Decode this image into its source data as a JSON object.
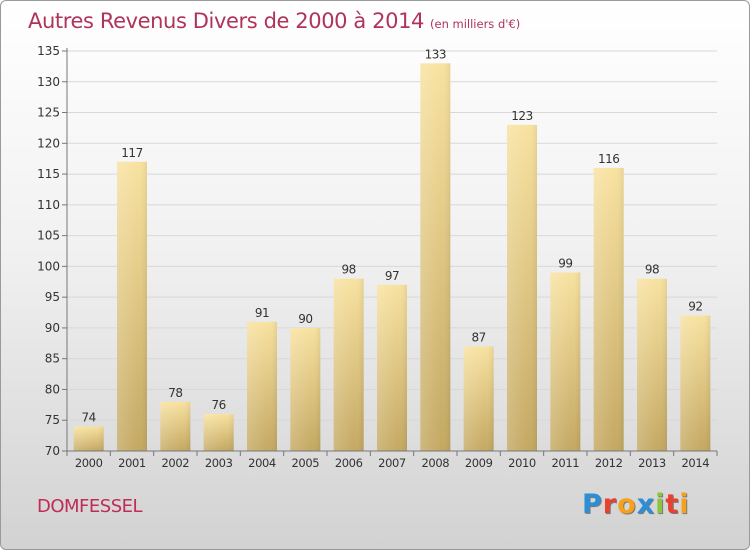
{
  "title": {
    "main": "Autres Revenus Divers de 2000 à 2014",
    "unit": "(en milliers d'€)"
  },
  "town": "DOMFESSEL",
  "logo": {
    "text": "Proxiti",
    "letters": [
      {
        "ch": "P",
        "color": "#2a8fd6"
      },
      {
        "ch": "r",
        "color": "#e8412f"
      },
      {
        "ch": "o",
        "color": "#f4a21d"
      },
      {
        "ch": "x",
        "color": "#2a8fd6"
      },
      {
        "ch": "i",
        "color": "#8cc43f"
      },
      {
        "ch": "t",
        "color": "#e8412f"
      },
      {
        "ch": "i",
        "color": "#f4a21d"
      }
    ]
  },
  "colors": {
    "title": "#b0335a",
    "bar_top": "#f8e2a0",
    "bar_bottom": "#c4a862",
    "grid": "#d8d8d8"
  },
  "chart_data": {
    "type": "bar",
    "title": "Autres Revenus Divers de 2000 à 2014",
    "subtitle": "(en milliers d'€)",
    "categories": [
      "2000",
      "2001",
      "2002",
      "2003",
      "2004",
      "2005",
      "2006",
      "2007",
      "2008",
      "2009",
      "2010",
      "2011",
      "2012",
      "2013",
      "2014"
    ],
    "values": [
      74,
      117,
      78,
      76,
      91,
      90,
      98,
      97,
      133,
      87,
      123,
      99,
      116,
      98,
      92
    ],
    "ylim": [
      70,
      135
    ],
    "yticks": [
      70,
      75,
      80,
      85,
      90,
      95,
      100,
      105,
      110,
      115,
      120,
      125,
      130,
      135
    ],
    "grid": true,
    "data_labels": true
  }
}
